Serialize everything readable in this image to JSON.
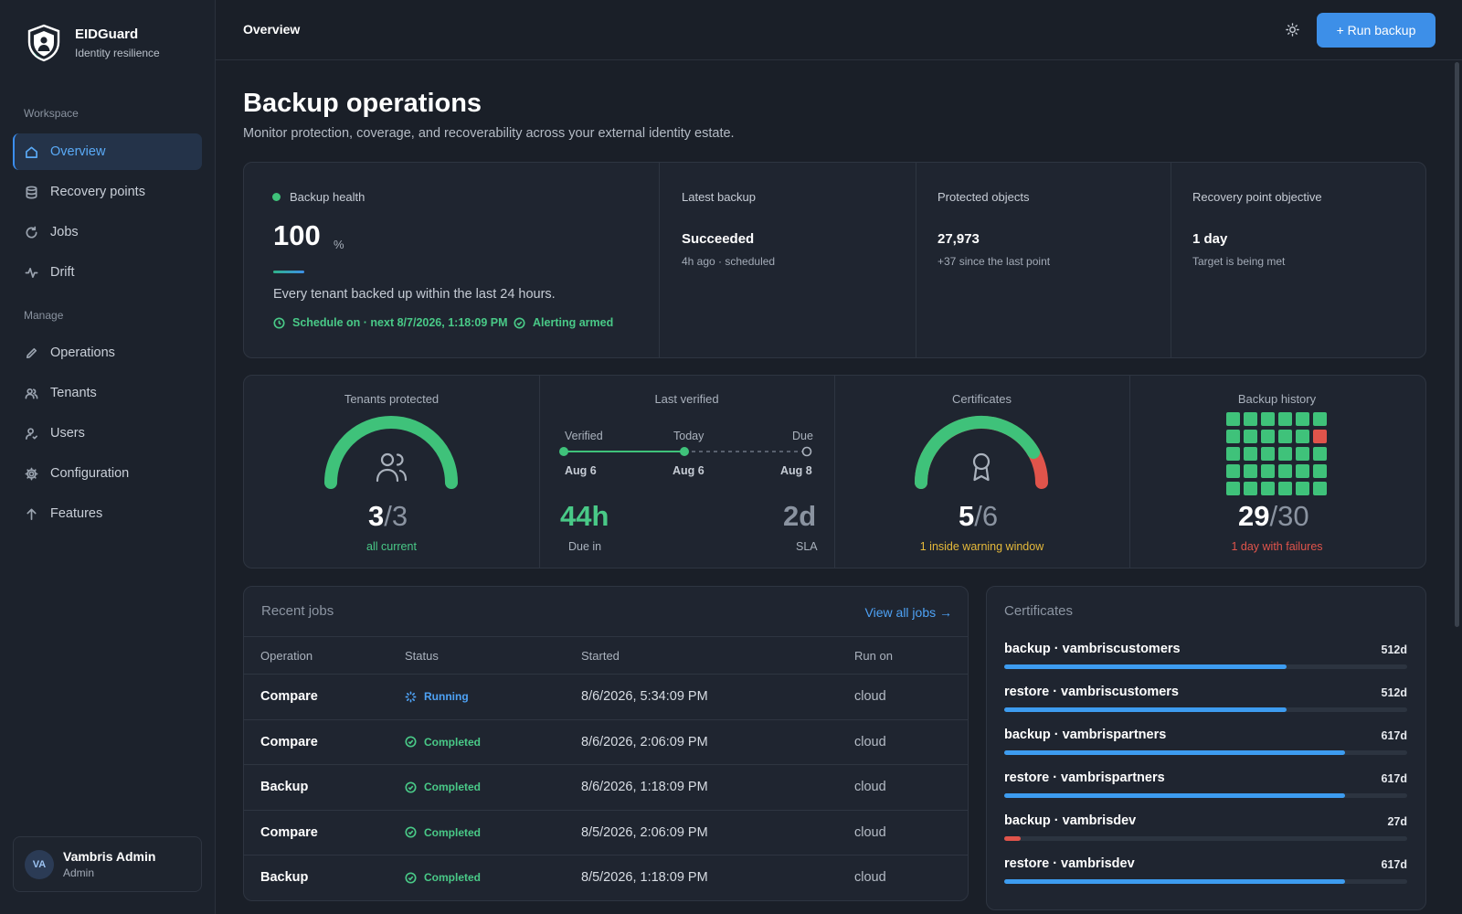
{
  "brand": {
    "name": "EIDGuard",
    "tagline": "Identity resilience"
  },
  "sidebar": {
    "section_workspace": "Workspace",
    "section_manage": "Manage",
    "items": [
      {
        "label": "Overview",
        "icon": "home-icon",
        "active": true
      },
      {
        "label": "Recovery points",
        "icon": "database-icon"
      },
      {
        "label": "Jobs",
        "icon": "refresh-icon"
      },
      {
        "label": "Drift",
        "icon": "activity-icon"
      },
      {
        "label": "Operations",
        "icon": "pencil-icon"
      },
      {
        "label": "Tenants",
        "icon": "users-icon"
      },
      {
        "label": "Users",
        "icon": "user-icon"
      },
      {
        "label": "Configuration",
        "icon": "gear-icon"
      },
      {
        "label": "Features",
        "icon": "arrow-up-icon"
      }
    ]
  },
  "user": {
    "initials": "VA",
    "name": "Vambris Admin",
    "role": "Admin"
  },
  "topbar": {
    "title": "Overview",
    "theme_icon": "sun-icon",
    "run_backup_label": "+ Run backup"
  },
  "page": {
    "title": "Backup operations",
    "subtitle": "Monitor protection, coverage, and recoverability across your external identity estate."
  },
  "summary": {
    "health": {
      "label": "Backup health",
      "value": "100",
      "unit": "%",
      "level": 1.0,
      "description": "Every tenant backed up within the last 24 hours.",
      "schedule": "Schedule on · next 8/7/2026, 1:18:09 PM",
      "alerting": "Alerting armed"
    },
    "latest": {
      "label": "Latest backup",
      "value": "Succeeded",
      "sub": "4h ago · scheduled"
    },
    "protected": {
      "label": "Protected objects",
      "value": "27,973",
      "sub": "+37 since the last point"
    },
    "rpo": {
      "label": "Recovery point objective",
      "value": "1 day",
      "sub": "Target is being met"
    }
  },
  "metrics": {
    "tenants": {
      "label": "Tenants protected",
      "current": "3",
      "total": "/3",
      "sub": "all current",
      "fraction": 1.0
    },
    "verified": {
      "label": "Last verified",
      "verified_label": "Verified",
      "today_label": "Today",
      "due_label": "Due",
      "verified_date": "Aug 6",
      "today_date": "Aug 6",
      "due_date": "Aug 8",
      "due_in_value": "44h",
      "due_in_label": "Due in",
      "sla_value": "2d",
      "sla_label": "SLA"
    },
    "certificates": {
      "label": "Certificates",
      "current": "5",
      "total": "/6",
      "sub": "1 inside warning window",
      "fraction": 0.833
    },
    "history": {
      "label": "Backup history",
      "current": "29",
      "total": "/30",
      "sub": "1 day with failures",
      "days": [
        "ok",
        "ok",
        "ok",
        "ok",
        "ok",
        "ok",
        "ok",
        "ok",
        "ok",
        "ok",
        "ok",
        "fail",
        "ok",
        "ok",
        "ok",
        "ok",
        "ok",
        "ok",
        "ok",
        "ok",
        "ok",
        "ok",
        "ok",
        "ok",
        "ok",
        "ok",
        "ok",
        "ok",
        "ok",
        "ok"
      ]
    }
  },
  "jobs": {
    "title": "Recent jobs",
    "view_all": "View all jobs →",
    "columns": [
      "Operation",
      "Status",
      "Started",
      "Run on"
    ],
    "rows": [
      {
        "operation": "Compare",
        "status": "Running",
        "started": "8/6/2026, 5:34:09 PM",
        "run_on": "cloud"
      },
      {
        "operation": "Compare",
        "status": "Completed",
        "started": "8/6/2026, 2:06:09 PM",
        "run_on": "cloud"
      },
      {
        "operation": "Backup",
        "status": "Completed",
        "started": "8/6/2026, 1:18:09 PM",
        "run_on": "cloud"
      },
      {
        "operation": "Compare",
        "status": "Completed",
        "started": "8/5/2026, 2:06:09 PM",
        "run_on": "cloud"
      },
      {
        "operation": "Backup",
        "status": "Completed",
        "started": "8/5/2026, 1:18:09 PM",
        "run_on": "cloud"
      }
    ]
  },
  "certificates": {
    "title": "Certificates",
    "items": [
      {
        "name": "backup · vambriscustomers",
        "days": "512d",
        "fraction": 0.7,
        "color": "#3d9cf0"
      },
      {
        "name": "restore · vambriscustomers",
        "days": "512d",
        "fraction": 0.7,
        "color": "#3d9cf0"
      },
      {
        "name": "backup · vambrispartners",
        "days": "617d",
        "fraction": 0.845,
        "color": "#3d9cf0"
      },
      {
        "name": "restore · vambrispartners",
        "days": "617d",
        "fraction": 0.845,
        "color": "#3d9cf0"
      },
      {
        "name": "backup · vambrisdev",
        "days": "27d",
        "fraction": 0.04,
        "color": "#e0544b"
      },
      {
        "name": "restore · vambrisdev",
        "days": "617d",
        "fraction": 0.845,
        "color": "#3d9cf0"
      }
    ]
  },
  "colors": {
    "accent": "#3d8fe8",
    "success": "#49c987",
    "warning": "#e5b93a",
    "danger": "#e0544b"
  }
}
